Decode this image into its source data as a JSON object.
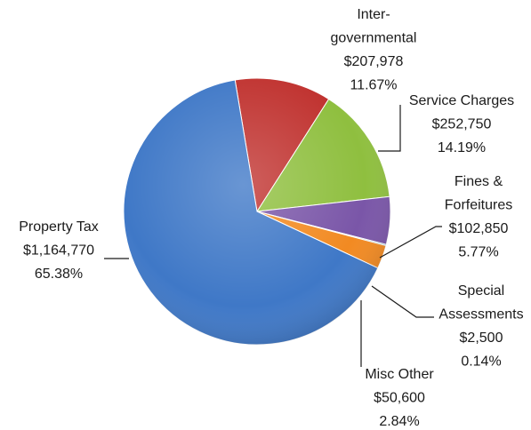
{
  "chart_data": {
    "type": "pie",
    "title": "",
    "series": [
      {
        "name": "Property Tax",
        "amount": "$1,164,770",
        "value": 1164770,
        "percent": "65.38%",
        "color": "#3f78c7"
      },
      {
        "name": "Inter-governmental",
        "name_lines": [
          "Inter-",
          "governmental"
        ],
        "amount": "$207,978",
        "value": 207978,
        "percent": "11.67%",
        "color": "#c0322f"
      },
      {
        "name": "Service Charges",
        "amount": "$252,750",
        "value": 252750,
        "percent": "14.19%",
        "color": "#8fbf3f"
      },
      {
        "name": "Fines & Forfeitures",
        "name_lines": [
          "Fines &",
          "Forfeitures"
        ],
        "amount": "$102,850",
        "value": 102850,
        "percent": "5.77%",
        "color": "#7a56a8"
      },
      {
        "name": "Special Assessments",
        "name_lines": [
          "Special",
          "Assessments"
        ],
        "amount": "$2,500",
        "value": 2500,
        "percent": "0.14%",
        "color": "#3fa2bf"
      },
      {
        "name": "Misc Other",
        "amount": "$50,600",
        "value": 50600,
        "percent": "2.84%",
        "color": "#f28a22"
      }
    ]
  }
}
